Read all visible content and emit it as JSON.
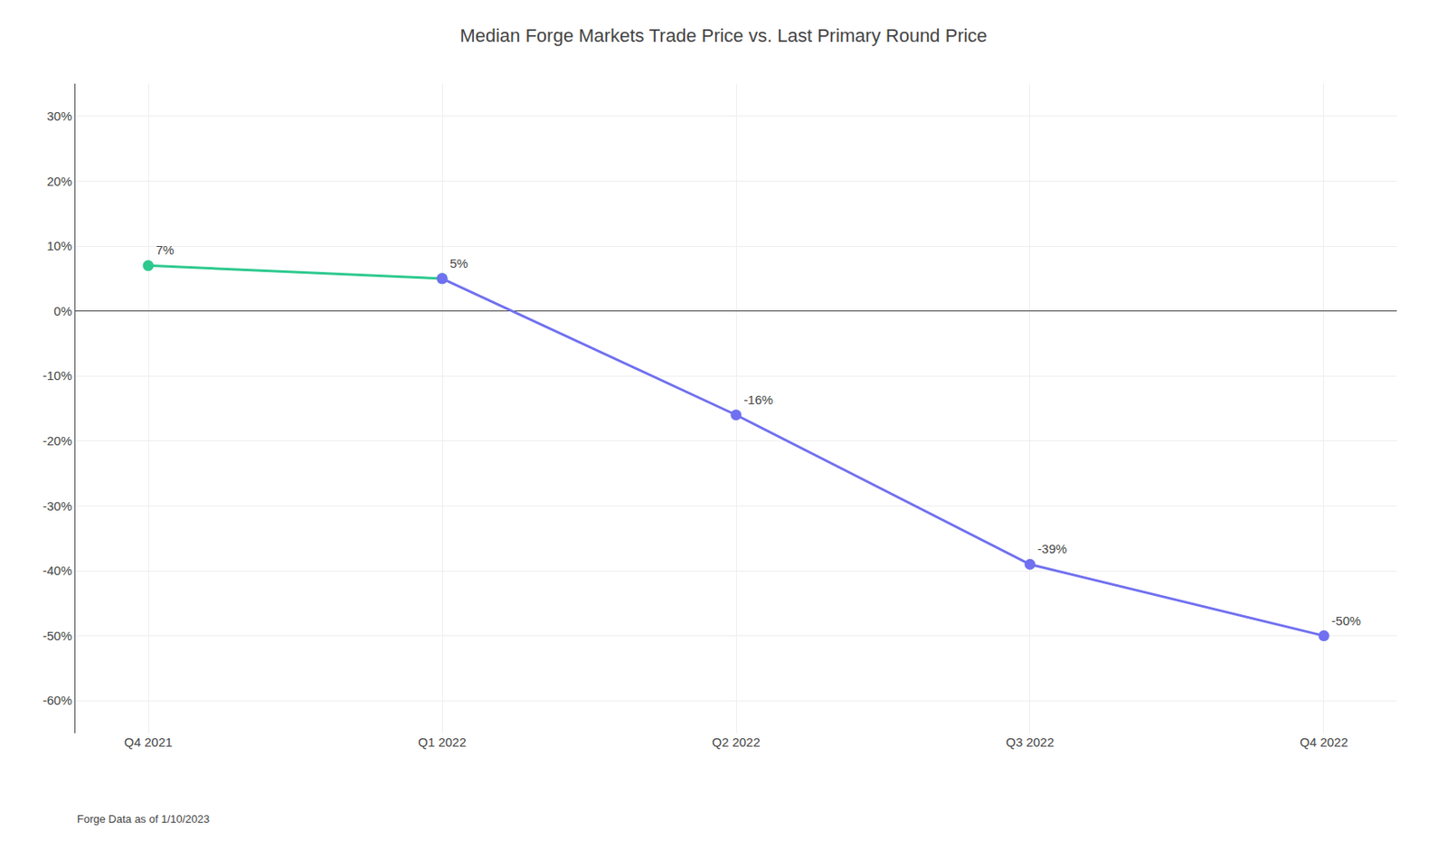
{
  "chart_data": {
    "type": "line",
    "title": "Median Forge Markets Trade Price vs. Last Primary Round Price",
    "categories": [
      "Q4 2021",
      "Q1 2022",
      "Q2 2022",
      "Q3 2022",
      "Q4 2022"
    ],
    "series": [
      {
        "color": "#2DC98E",
        "values": [
          7,
          5,
          null,
          null,
          null
        ],
        "value_labels": [
          "7%",
          "5%",
          null,
          null,
          null
        ]
      },
      {
        "color": "#7070F0",
        "values": [
          null,
          5,
          -16,
          -39,
          -50
        ],
        "value_labels": [
          null,
          null,
          "-16%",
          "-39%",
          "-50%"
        ]
      }
    ],
    "data_labels": true,
    "marker": "circle",
    "line_style": "solid",
    "ylim": [
      -65,
      35
    ],
    "yticks": [
      {
        "value": -60,
        "label": "-60%"
      },
      {
        "value": -50,
        "label": "-50%"
      },
      {
        "value": -40,
        "label": "-40%"
      },
      {
        "value": -30,
        "label": "-30%"
      },
      {
        "value": -20,
        "label": "-20%"
      },
      {
        "value": -10,
        "label": "-10%"
      },
      {
        "value": 0,
        "label": "0%"
      },
      {
        "value": 10,
        "label": "10%"
      },
      {
        "value": 20,
        "label": "20%"
      },
      {
        "value": 30,
        "label": "30%"
      }
    ],
    "grid": true,
    "annotations": [
      "Forge Data as of 1/10/2023"
    ]
  }
}
